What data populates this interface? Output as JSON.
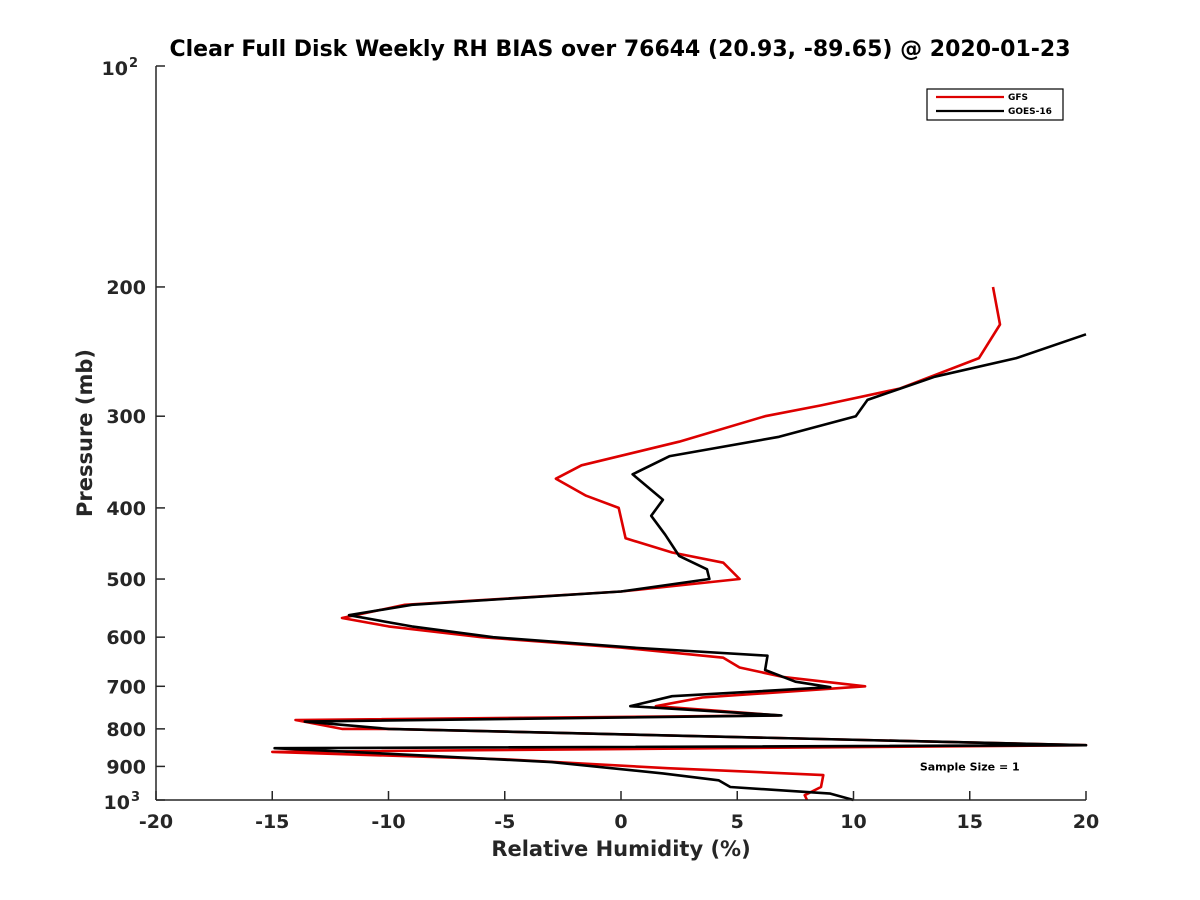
{
  "chart_data": {
    "type": "line",
    "title": "Clear Full Disk Weekly RH BIAS over 76644 (20.93, -89.65) @ 2020-01-23",
    "xlabel": "Relative Humidity (%)",
    "ylabel": "Pressure (mb)",
    "xlim": [
      -20,
      20
    ],
    "ylim": [
      100,
      1000
    ],
    "yscale": "log",
    "y_reversed": true,
    "x_ticks": [
      -20,
      -15,
      -10,
      -5,
      0,
      5,
      10,
      15,
      20
    ],
    "x_tick_labels": [
      "-20",
      "-15",
      "-10",
      "-5",
      "0",
      "5",
      "10",
      "15",
      "20"
    ],
    "y_ticks": [
      200,
      300,
      400,
      500,
      600,
      700,
      800,
      900
    ],
    "y_tick_labels": [
      "200",
      "300",
      "400",
      "500",
      "600",
      "700",
      "800",
      "900"
    ],
    "y_end_labels": {
      "top_base": "10",
      "top_exp": "2",
      "bottom_base": "10",
      "bottom_exp": "3"
    },
    "legend_position": "top-right",
    "series": [
      {
        "name": "GFS",
        "color": "#dd0000",
        "points": [
          [
            16.0,
            200
          ],
          [
            16.3,
            225
          ],
          [
            15.4,
            250
          ],
          [
            12.0,
            275
          ],
          [
            8.6,
            290
          ],
          [
            6.2,
            300
          ],
          [
            2.5,
            325
          ],
          [
            -1.7,
            350
          ],
          [
            -2.8,
            365
          ],
          [
            -1.5,
            385
          ],
          [
            -0.1,
            400
          ],
          [
            0.2,
            440
          ],
          [
            2.2,
            460
          ],
          [
            4.4,
            475
          ],
          [
            5.1,
            500
          ],
          [
            0.0,
            520
          ],
          [
            -9.3,
            542
          ],
          [
            -12.0,
            565
          ],
          [
            -10.0,
            580
          ],
          [
            -6.0,
            600
          ],
          [
            0.0,
            620
          ],
          [
            4.4,
            640
          ],
          [
            5.1,
            660
          ],
          [
            7.0,
            680
          ],
          [
            10.5,
            700
          ],
          [
            3.5,
            725
          ],
          [
            1.5,
            745
          ],
          [
            6.8,
            767
          ],
          [
            -14.0,
            778
          ],
          [
            -12.0,
            800
          ],
          [
            -10.0,
            800
          ],
          [
            20.0,
            842
          ],
          [
            -15.0,
            860
          ],
          [
            -5.0,
            880
          ],
          [
            2.0,
            905
          ],
          [
            5.5,
            915
          ],
          [
            8.7,
            925
          ],
          [
            8.6,
            960
          ],
          [
            7.9,
            985
          ],
          [
            8.0,
            1000
          ]
        ]
      },
      {
        "name": "GOES-16",
        "color": "#000000",
        "points": [
          [
            20.0,
            232
          ],
          [
            17.0,
            250
          ],
          [
            13.5,
            265
          ],
          [
            10.6,
            285
          ],
          [
            10.1,
            300
          ],
          [
            6.8,
            320
          ],
          [
            2.1,
            340
          ],
          [
            0.5,
            360
          ],
          [
            1.8,
            390
          ],
          [
            1.3,
            410
          ],
          [
            1.9,
            435
          ],
          [
            2.5,
            465
          ],
          [
            3.7,
            485
          ],
          [
            3.8,
            500
          ],
          [
            0.0,
            520
          ],
          [
            -9.0,
            542
          ],
          [
            -11.7,
            560
          ],
          [
            -9.0,
            580
          ],
          [
            -5.5,
            600
          ],
          [
            0.5,
            620
          ],
          [
            6.3,
            636
          ],
          [
            6.2,
            665
          ],
          [
            7.5,
            690
          ],
          [
            9.0,
            702
          ],
          [
            2.2,
            722
          ],
          [
            0.4,
            745
          ],
          [
            6.9,
            767
          ],
          [
            -13.6,
            782
          ],
          [
            -10.0,
            800
          ],
          [
            20.0,
            842
          ],
          [
            -14.9,
            850
          ],
          [
            -9.0,
            868
          ],
          [
            -3.0,
            888
          ],
          [
            1.8,
            920
          ],
          [
            4.2,
            940
          ],
          [
            4.7,
            960
          ],
          [
            9.0,
            980
          ],
          [
            10.0,
            1000
          ]
        ]
      }
    ],
    "annotations": [
      {
        "text": "Sample Size = 1",
        "x": 15,
        "y": 900
      }
    ]
  }
}
